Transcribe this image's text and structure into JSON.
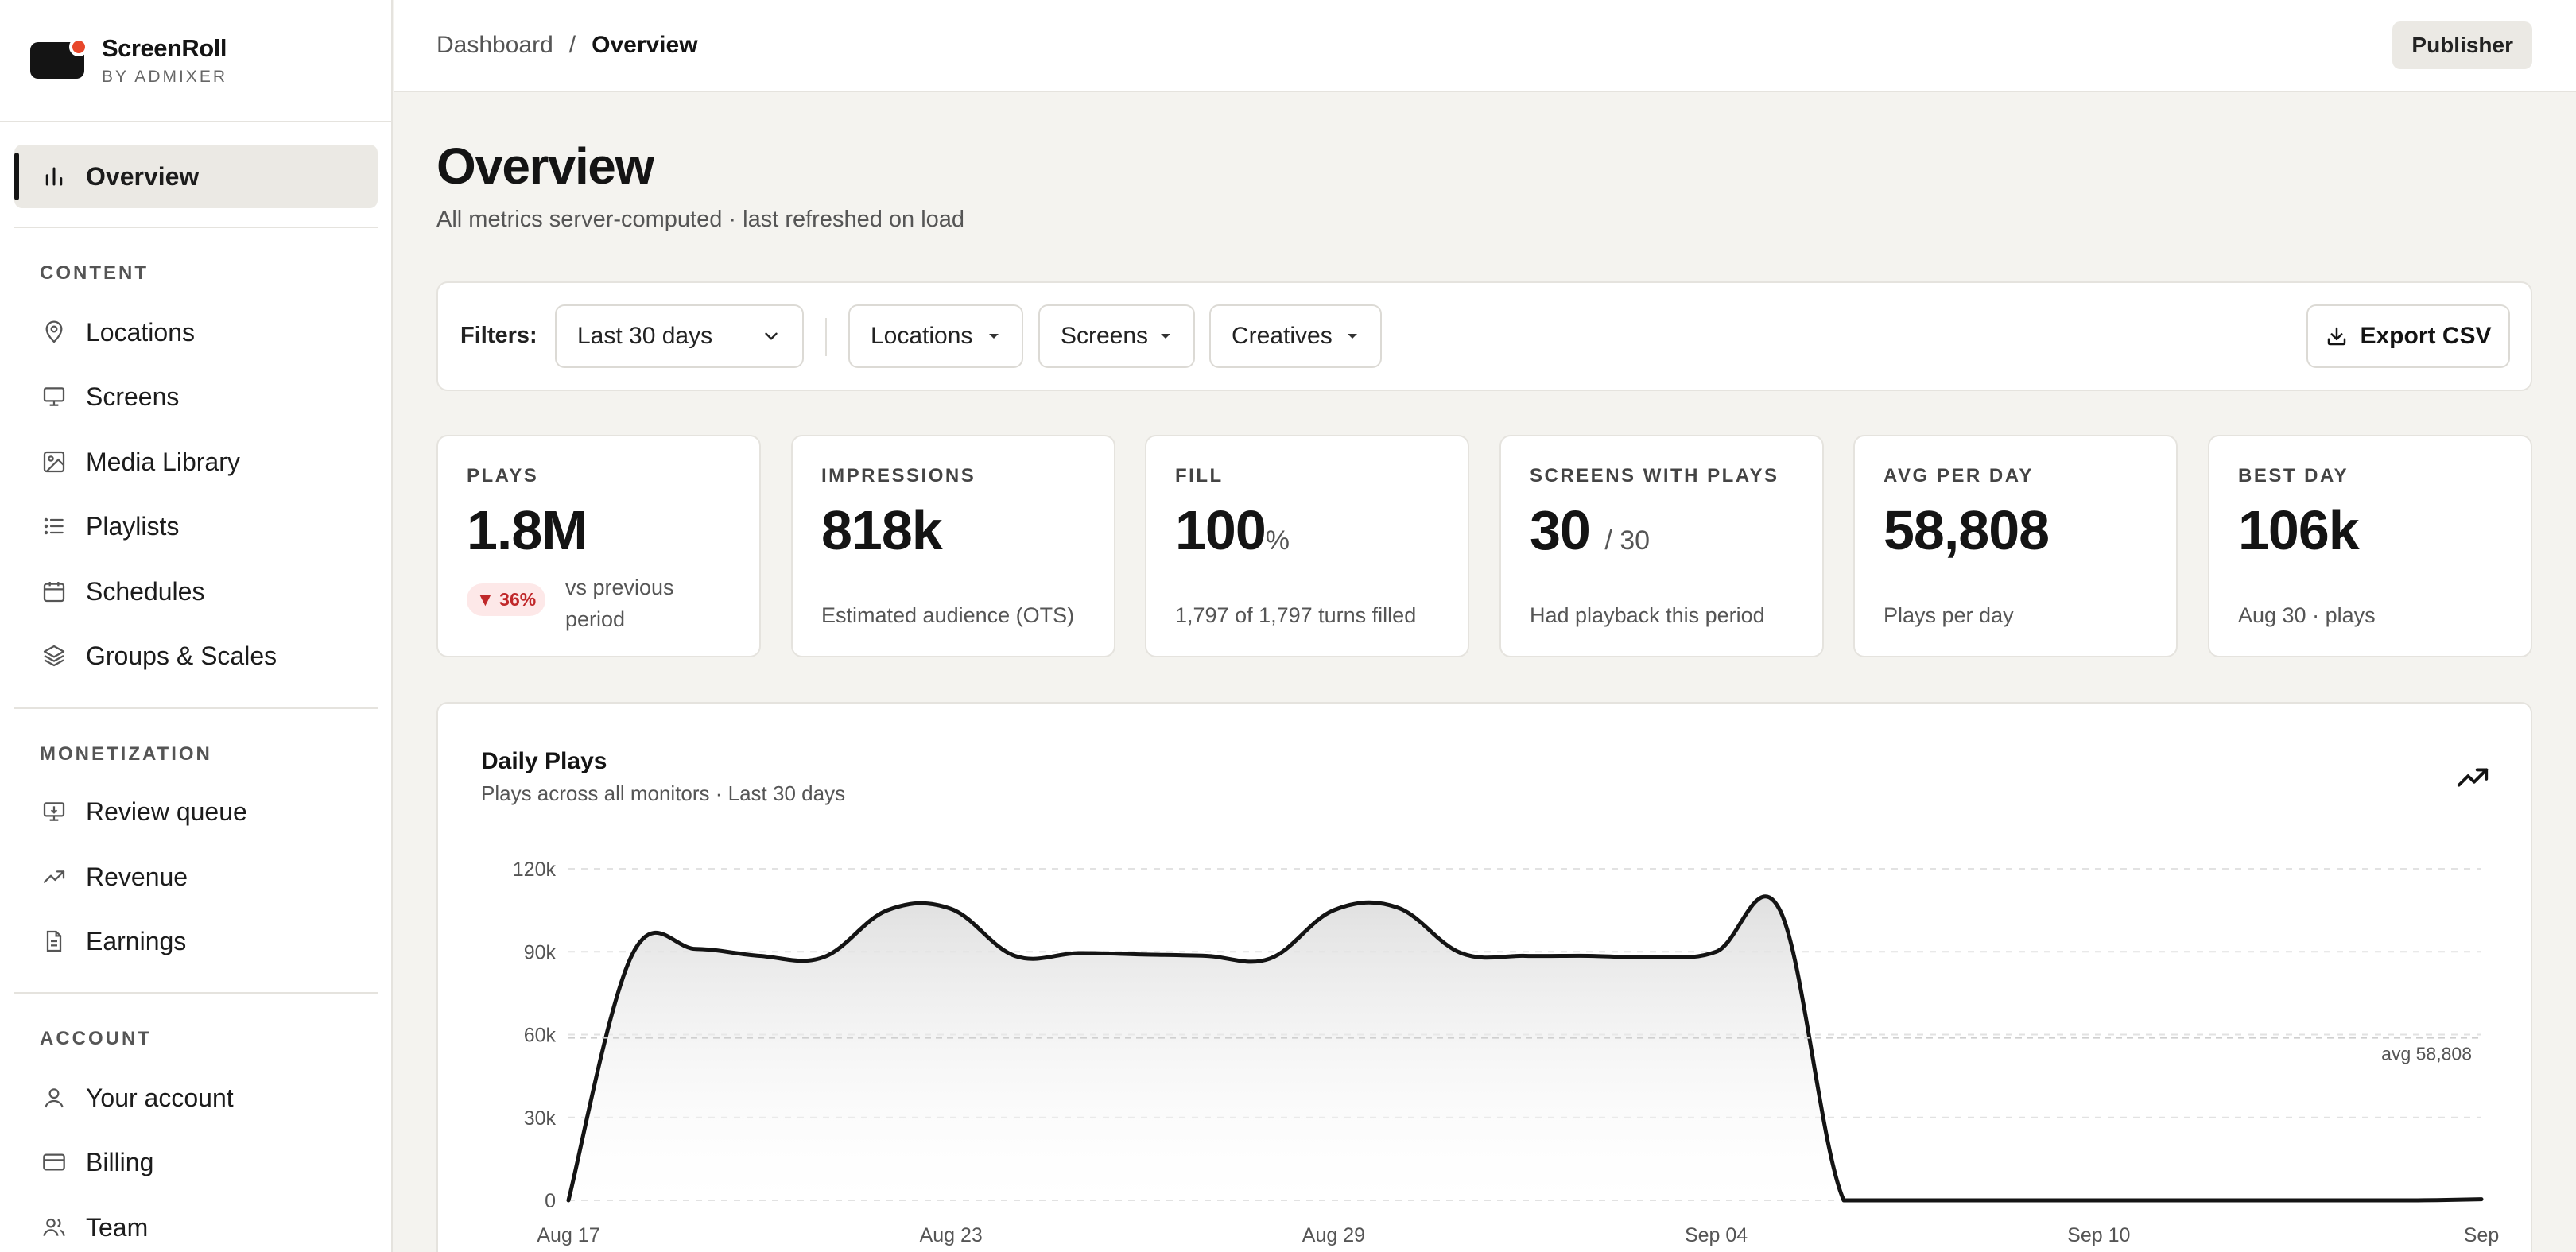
{
  "brand": {
    "name": "ScreenRoll",
    "sub": "BY ADMIXER"
  },
  "sidebar": {
    "primary": {
      "label": "Overview",
      "icon": "bar-chart-icon"
    },
    "sections": [
      {
        "title": "CONTENT",
        "items": [
          {
            "label": "Locations",
            "icon": "map-pin-icon"
          },
          {
            "label": "Screens",
            "icon": "monitor-icon"
          },
          {
            "label": "Media Library",
            "icon": "image-icon"
          },
          {
            "label": "Playlists",
            "icon": "list-icon"
          },
          {
            "label": "Schedules",
            "icon": "calendar-icon"
          },
          {
            "label": "Groups & Scales",
            "icon": "layers-icon"
          }
        ]
      },
      {
        "title": "MONETIZATION",
        "items": [
          {
            "label": "Review queue",
            "icon": "monitor-review-icon"
          },
          {
            "label": "Revenue",
            "icon": "trending-up-icon"
          },
          {
            "label": "Earnings",
            "icon": "document-icon"
          }
        ]
      },
      {
        "title": "ACCOUNT",
        "items": [
          {
            "label": "Your account",
            "icon": "user-icon"
          },
          {
            "label": "Billing",
            "icon": "credit-card-icon"
          },
          {
            "label": "Team",
            "icon": "users-icon"
          }
        ]
      }
    ]
  },
  "topbar": {
    "breadcrumb_root": "Dashboard",
    "breadcrumb_sep": "/",
    "breadcrumb_current": "Overview",
    "role": "Publisher"
  },
  "page": {
    "title": "Overview",
    "subtitle": "All metrics server-computed · last refreshed on load"
  },
  "filters": {
    "label": "Filters:",
    "date_range": "Last 30 days",
    "locations": "Locations",
    "screens": "Screens",
    "creatives": "Creatives",
    "export": "Export CSV"
  },
  "kpis": {
    "plays": {
      "label": "PLAYS",
      "value": "1.8M",
      "delta": "▼ 36%",
      "delta_text": "vs previous period"
    },
    "impressions": {
      "label": "IMPRESSIONS",
      "value": "818k",
      "desc": "Estimated audience (OTS)"
    },
    "fill": {
      "label": "FILL",
      "value": "100",
      "unit": "%",
      "desc": "1,797 of 1,797 turns filled"
    },
    "screens": {
      "label": "SCREENS WITH PLAYS",
      "value": "30",
      "total": "/ 30",
      "desc": "Had playback this period"
    },
    "avg": {
      "label": "AVG PER DAY",
      "value": "58,808",
      "desc": "Plays per day"
    },
    "best": {
      "label": "BEST DAY",
      "value": "106k",
      "desc": "Aug 30 · plays"
    }
  },
  "chart": {
    "title": "Daily Plays",
    "subtitle": "Plays across all monitors · Last 30 days"
  },
  "chart_data": {
    "type": "area",
    "title": "Daily Plays",
    "x_tick_labels": [
      "Aug 17",
      "Aug 23",
      "Aug 29",
      "Sep 04",
      "Sep 10",
      "Sep"
    ],
    "y_ticks": [
      0,
      30000,
      60000,
      90000,
      120000
    ],
    "y_tick_labels": [
      "0",
      "30k",
      "60k",
      "90k",
      "120k"
    ],
    "ylim": [
      0,
      120000
    ],
    "x": [
      "Aug 17",
      "Aug 18",
      "Aug 19",
      "Aug 20",
      "Aug 21",
      "Aug 22",
      "Aug 23",
      "Aug 24",
      "Aug 25",
      "Aug 26",
      "Aug 27",
      "Aug 28",
      "Aug 29",
      "Aug 30",
      "Aug 31",
      "Sep 01",
      "Sep 02",
      "Sep 03",
      "Sep 04",
      "Sep 05",
      "Sep 06",
      "Sep 07",
      "Sep 08",
      "Sep 09",
      "Sep 10",
      "Sep 11",
      "Sep 12",
      "Sep 13",
      "Sep 14",
      "Sep 15",
      "Sep 16"
    ],
    "values": [
      0,
      89000,
      91000,
      88500,
      88000,
      105000,
      105500,
      88500,
      89500,
      89000,
      88500,
      87500,
      105000,
      106000,
      89500,
      88500,
      88500,
      88000,
      90000,
      105000,
      0,
      0,
      0,
      0,
      0,
      0,
      0,
      0,
      0,
      0,
      400
    ],
    "avg_line": {
      "value": 58808,
      "label": "avg 58,808"
    },
    "grid": true,
    "line_color": "#141414"
  }
}
